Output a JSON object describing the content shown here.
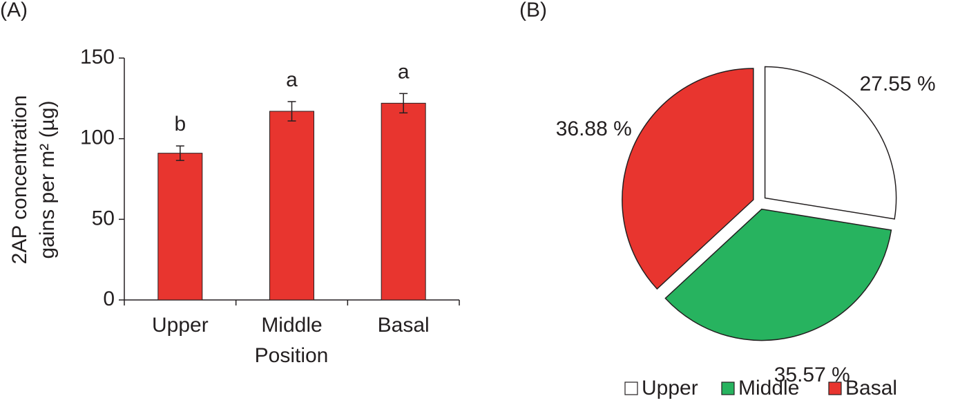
{
  "chart_data": [
    {
      "type": "bar",
      "panel": "(A)",
      "ylabel": [
        "2AP concentration",
        "gains per m² (µg)"
      ],
      "xlabel": "Position",
      "categories": [
        "Upper",
        "Middle",
        "Basal"
      ],
      "values": [
        91,
        117,
        122
      ],
      "errors": [
        4.5,
        6,
        6
      ],
      "annotations": [
        "b",
        "a",
        "a"
      ],
      "color": "#e8352f",
      "ylim": [
        0,
        150
      ],
      "yticks": [
        0,
        50,
        100,
        150
      ]
    },
    {
      "type": "pie",
      "panel": "(B)",
      "categories": [
        "Upper",
        "Middle",
        "Basal"
      ],
      "values": [
        27.55,
        35.57,
        36.88
      ],
      "value_labels": [
        "27.55 %",
        "35.57 %",
        "36.88 %"
      ],
      "colors": [
        "#ffffff",
        "#27b35f",
        "#e8352f"
      ],
      "legend": "bottom"
    }
  ]
}
